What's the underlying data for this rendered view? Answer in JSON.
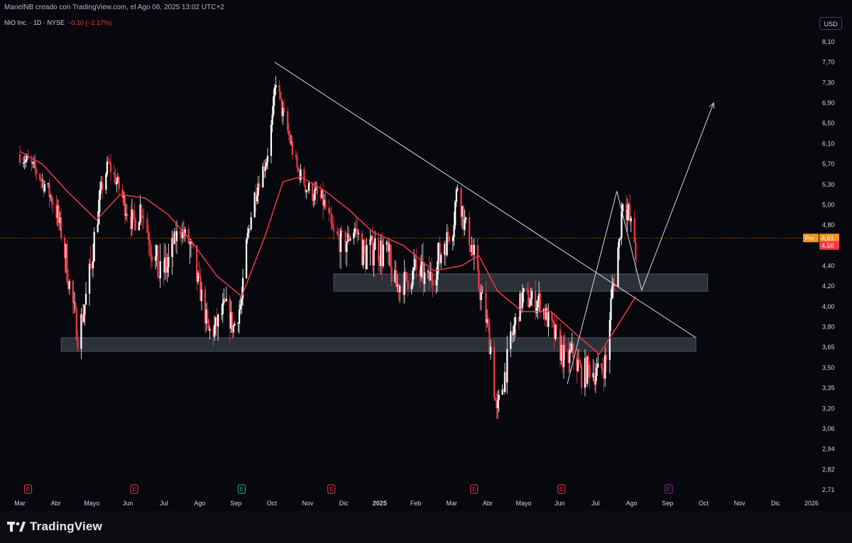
{
  "header": {
    "credit": "ManelNB creado con TradingView.com, el Ago 06, 2025 13:02 UTC+2",
    "symbol": "NIO Inc. · 1D · NYSE",
    "change": "−0.10 (−2.17%)",
    "currency": "USD"
  },
  "price_tags": [
    {
      "label": "Pre",
      "value": "4,61",
      "color": "#f7931a"
    },
    {
      "label": "",
      "value": "4,50",
      "color": "#f23645"
    }
  ],
  "branding": {
    "logo_text": "TradingView"
  },
  "colors": {
    "up": "#ffffff",
    "down": "#f23645",
    "ma": "#f23645",
    "zone": "#3a3d47",
    "background": "#06080d"
  },
  "chart_data": {
    "type": "candlestick",
    "y_ticks": [
      "8,10",
      "7,70",
      "7,30",
      "6,90",
      "6,50",
      "6,10",
      "5,70",
      "5,30",
      "5,00",
      "4,80",
      "4,50",
      "4,40",
      "4,20",
      "4,00",
      "3,80",
      "3,65",
      "3,50",
      "3,35",
      "3,20",
      "3,06",
      "2,94",
      "2,82",
      "2,71"
    ],
    "y_tick_values": [
      8.1,
      7.7,
      7.3,
      6.9,
      6.5,
      6.1,
      5.7,
      5.3,
      5.0,
      4.8,
      4.5,
      4.4,
      4.2,
      4.0,
      3.8,
      3.65,
      3.5,
      3.35,
      3.2,
      3.06,
      2.94,
      2.82,
      2.71
    ],
    "x_ticks": [
      "Mar",
      "Abr",
      "Mayo",
      "Jun",
      "Jul",
      "Ago",
      "Sep",
      "Oct",
      "Nov",
      "Dic",
      "2025",
      "Feb",
      "Mar",
      "Abr",
      "Mayo",
      "Jun",
      "Jul",
      "Ago",
      "Sep",
      "Oct",
      "Nov",
      "Dic",
      "2026"
    ],
    "x_range": [
      "2024-03-01",
      "2026-01-01"
    ],
    "current_price": 4.61,
    "closes": [
      [
        "2024-03-01",
        5.9
      ],
      [
        "2024-03-15",
        5.55
      ],
      [
        "2024-04-01",
        4.95
      ],
      [
        "2024-04-10",
        4.35
      ],
      [
        "2024-04-19",
        3.75
      ],
      [
        "2024-04-24",
        3.95
      ],
      [
        "2024-05-01",
        4.45
      ],
      [
        "2024-05-10",
        5.3
      ],
      [
        "2024-05-15",
        5.7
      ],
      [
        "2024-05-20",
        5.45
      ],
      [
        "2024-05-27",
        5.1
      ],
      [
        "2024-06-05",
        4.8
      ],
      [
        "2024-06-12",
        5.0
      ],
      [
        "2024-06-20",
        4.55
      ],
      [
        "2024-06-27",
        4.3
      ],
      [
        "2024-07-05",
        4.4
      ],
      [
        "2024-07-15",
        4.75
      ],
      [
        "2024-07-22",
        4.55
      ],
      [
        "2024-08-01",
        4.15
      ],
      [
        "2024-08-08",
        3.75
      ],
      [
        "2024-08-14",
        3.8
      ],
      [
        "2024-08-22",
        4.0
      ],
      [
        "2024-08-29",
        3.8
      ],
      [
        "2024-09-05",
        4.05
      ],
      [
        "2024-09-12",
        4.85
      ],
      [
        "2024-09-19",
        5.35
      ],
      [
        "2024-09-26",
        5.8
      ],
      [
        "2024-10-01",
        6.55
      ],
      [
        "2024-10-04",
        7.4
      ],
      [
        "2024-10-08",
        6.85
      ],
      [
        "2024-10-15",
        6.25
      ],
      [
        "2024-10-22",
        5.6
      ],
      [
        "2024-10-30",
        5.25
      ],
      [
        "2024-11-06",
        5.15
      ],
      [
        "2024-11-13",
        5.05
      ],
      [
        "2024-11-22",
        4.65
      ],
      [
        "2024-12-02",
        4.55
      ],
      [
        "2024-12-10",
        4.75
      ],
      [
        "2024-12-18",
        4.45
      ],
      [
        "2024-12-27",
        4.55
      ],
      [
        "2025-01-06",
        4.45
      ],
      [
        "2025-01-14",
        4.2
      ],
      [
        "2025-01-22",
        4.25
      ],
      [
        "2025-01-31",
        4.35
      ],
      [
        "2025-02-10",
        4.25
      ],
      [
        "2025-02-20",
        4.45
      ],
      [
        "2025-03-03",
        4.75
      ],
      [
        "2025-03-07",
        5.3
      ],
      [
        "2025-03-12",
        4.85
      ],
      [
        "2025-03-20",
        4.45
      ],
      [
        "2025-03-28",
        4.05
      ],
      [
        "2025-04-04",
        3.65
      ],
      [
        "2025-04-09",
        3.15
      ],
      [
        "2025-04-16",
        3.45
      ],
      [
        "2025-04-24",
        3.8
      ],
      [
        "2025-05-01",
        4.1
      ],
      [
        "2025-05-09",
        4.05
      ],
      [
        "2025-05-16",
        4.05
      ],
      [
        "2025-05-23",
        3.85
      ],
      [
        "2025-05-30",
        3.7
      ],
      [
        "2025-06-06",
        3.55
      ],
      [
        "2025-06-13",
        3.6
      ],
      [
        "2025-06-20",
        3.45
      ],
      [
        "2025-06-27",
        3.5
      ],
      [
        "2025-07-04",
        3.45
      ],
      [
        "2025-07-11",
        3.55
      ],
      [
        "2025-07-16",
        4.15
      ],
      [
        "2025-07-22",
        4.55
      ],
      [
        "2025-07-25",
        5.1
      ],
      [
        "2025-07-30",
        4.9
      ],
      [
        "2025-08-05",
        4.5
      ]
    ],
    "moving_average": [
      [
        "2024-03-01",
        5.95
      ],
      [
        "2024-03-20",
        5.7
      ],
      [
        "2024-04-10",
        5.2
      ],
      [
        "2024-05-05",
        4.85
      ],
      [
        "2024-05-25",
        5.15
      ],
      [
        "2024-06-15",
        5.1
      ],
      [
        "2024-07-05",
        4.9
      ],
      [
        "2024-07-25",
        4.55
      ],
      [
        "2024-08-15",
        4.3
      ],
      [
        "2024-09-05",
        4.1
      ],
      [
        "2024-09-25",
        4.65
      ],
      [
        "2024-10-10",
        5.35
      ],
      [
        "2024-10-25",
        5.45
      ],
      [
        "2024-11-15",
        5.2
      ],
      [
        "2024-12-05",
        4.95
      ],
      [
        "2024-12-25",
        4.7
      ],
      [
        "2025-01-20",
        4.5
      ],
      [
        "2025-02-15",
        4.35
      ],
      [
        "2025-03-10",
        4.4
      ],
      [
        "2025-03-25",
        4.45
      ],
      [
        "2025-04-10",
        4.15
      ],
      [
        "2025-05-01",
        3.95
      ],
      [
        "2025-05-25",
        3.95
      ],
      [
        "2025-06-15",
        3.75
      ],
      [
        "2025-07-05",
        3.6
      ],
      [
        "2025-07-20",
        3.8
      ],
      [
        "2025-08-05",
        4.1
      ]
    ],
    "zones": [
      {
        "from": "2024-04-05",
        "to": "2025-09-25",
        "low": 3.62,
        "high": 3.72
      },
      {
        "from": "2024-11-22",
        "to": "2025-10-05",
        "low": 4.15,
        "high": 4.32
      }
    ],
    "trendline": [
      [
        "2024-10-03",
        7.7
      ],
      [
        "2025-09-25",
        3.72
      ]
    ],
    "projection": [
      [
        "2025-06-08",
        3.38
      ],
      [
        "2025-07-20",
        5.2
      ],
      [
        "2025-08-10",
        4.16
      ],
      [
        "2025-10-10",
        6.9
      ]
    ],
    "event_markers": [
      {
        "date": "2024-03-08",
        "label": "E",
        "color": "#f23645"
      },
      {
        "date": "2024-06-06",
        "label": "E",
        "color": "#f23645"
      },
      {
        "date": "2024-09-05",
        "label": "E",
        "color": "#22ab94"
      },
      {
        "date": "2024-11-20",
        "label": "E",
        "color": "#f23645"
      },
      {
        "date": "2025-03-21",
        "label": "E",
        "color": "#f23645"
      },
      {
        "date": "2025-06-03",
        "label": "E",
        "color": "#f23645"
      },
      {
        "date": "2025-09-02",
        "label": "E",
        "color": "#9c27b0"
      }
    ]
  }
}
